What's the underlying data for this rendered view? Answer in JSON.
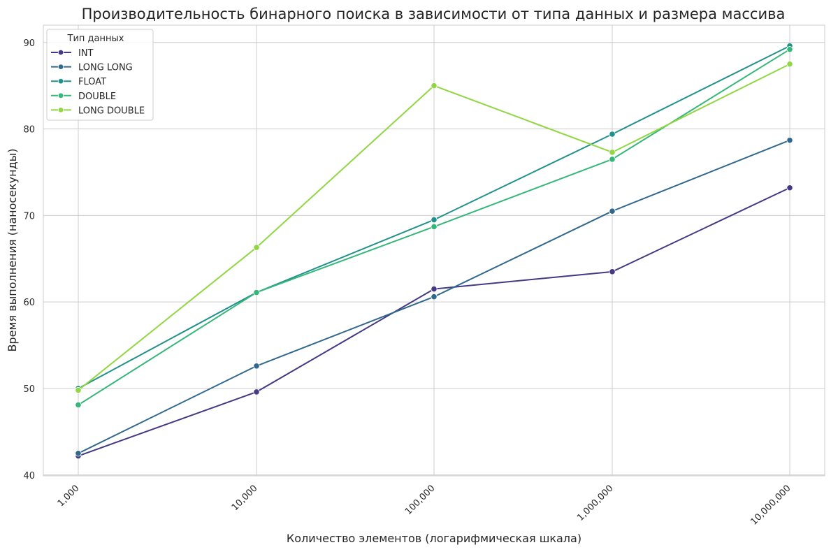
{
  "chart_data": {
    "type": "line",
    "title": "Производительность бинарного поиска в зависимости от типа данных и размера массива",
    "xlabel": "Количество элементов (логарифмическая шкала)",
    "ylabel": "Время выполнения (наносекунды)",
    "x_scale": "log",
    "x": [
      1000,
      10000,
      100000,
      1000000,
      10000000
    ],
    "x_tick_labels": [
      "1,000",
      "10,000",
      "100,000",
      "1,000,000",
      "10,000,000"
    ],
    "y_ticks": [
      40,
      50,
      60,
      70,
      80,
      90
    ],
    "ylim": [
      39.9,
      92
    ],
    "grid": true,
    "legend": {
      "title": "Тип данных",
      "placement": "top-left"
    },
    "series": [
      {
        "name": "INT",
        "color": "#443983",
        "values": [
          42.2,
          49.6,
          61.5,
          63.5,
          73.2
        ]
      },
      {
        "name": "LONG LONG",
        "color": "#31688e",
        "values": [
          42.5,
          52.6,
          60.6,
          70.5,
          78.7
        ]
      },
      {
        "name": "FLOAT",
        "color": "#21918c",
        "values": [
          50.0,
          61.1,
          69.5,
          79.4,
          89.6
        ]
      },
      {
        "name": "DOUBLE",
        "color": "#35b779",
        "values": [
          48.1,
          61.1,
          68.7,
          76.5,
          89.2
        ]
      },
      {
        "name": "LONG DOUBLE",
        "color": "#90d743",
        "values": [
          49.8,
          66.3,
          85.0,
          77.3,
          87.5
        ]
      }
    ]
  }
}
